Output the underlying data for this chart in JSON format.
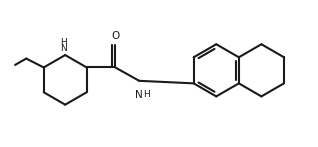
{
  "bg_color": "#ffffff",
  "line_color": "#1a1a1a",
  "line_width": 1.5,
  "fig_width": 3.18,
  "fig_height": 1.47,
  "dpi": 100,
  "xlim": [
    0,
    10
  ],
  "ylim": [
    0,
    4.5
  ],
  "nh_ring_label": "H",
  "nh_ring_label2": "N",
  "o_label": "O",
  "nh_amide_label": "N",
  "nh_amide_h": "H"
}
